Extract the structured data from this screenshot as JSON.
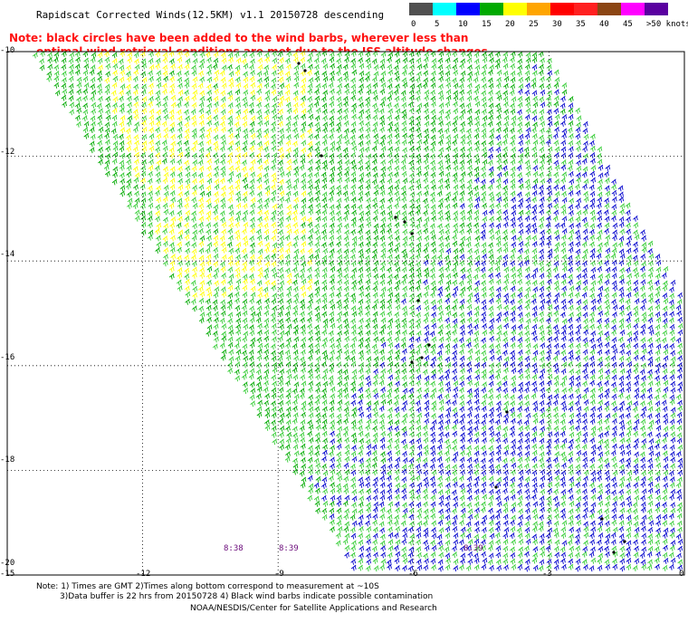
{
  "title": "Rapidscat Corrected Winds(12.5KM) v1.1 20150728 descending",
  "legend": {
    "levels": [
      "0",
      "5",
      "10",
      "15",
      "20",
      "25",
      "30",
      "35",
      "40",
      "45",
      ">50 knots"
    ],
    "colors": [
      "#505050",
      "#00ffff",
      "#0000ff",
      "#00aa00",
      "#ffff00",
      "#ffa500",
      "#ff0000",
      "#ff2020",
      "#8b4513",
      "#ff00ff",
      "#5a00a0"
    ]
  },
  "note": {
    "line1": "Note: black circles have been added to the wind barbs, wherever less than",
    "line2": "optimal wind retrieval conditions are met due to the ISS altitude changes."
  },
  "axes": {
    "y_ticks": [
      "-10",
      "-12",
      "-14",
      "-16",
      "-18",
      "-20"
    ],
    "x_ticks": [
      "-15",
      "-12",
      "-9",
      "-6",
      "-3",
      "0"
    ]
  },
  "time_labels": [
    "8:38",
    "8:39",
    "8:39"
  ],
  "footer": {
    "line1": "Note: 1) Times are GMT 2)Times along bottom correspond to measurement at ~10S",
    "line2": "3)Data buffer is 22 hrs from 20150728 4) Black wind barbs indicate possible contamination",
    "line3": "NOAA/NESDIS/Center for Satellite Applications and Research"
  },
  "map": {
    "lon_range": [
      -15,
      0
    ],
    "lat_range": [
      -20,
      -10
    ],
    "grid_lons": [
      -12,
      -9,
      -6,
      -3
    ],
    "grid_lats": [
      -12,
      -14,
      -16,
      -18
    ],
    "barb_colors": {
      "green": "#00aa00",
      "lightgreen": "#33cc33",
      "yellow": "#ffff00",
      "blue": "#0000cc",
      "black": "#000000"
    },
    "swath_direction": "descending"
  }
}
